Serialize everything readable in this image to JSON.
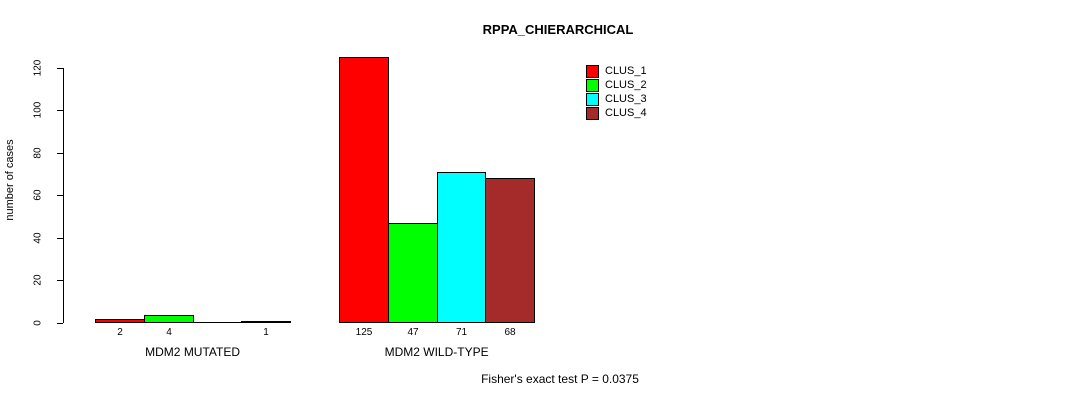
{
  "chart_data": {
    "type": "bar",
    "title": "RPPA_CHIERARCHICAL",
    "ylabel": "number of cases",
    "xlabel": "",
    "ylim": [
      0,
      125
    ],
    "yticks": [
      0,
      20,
      40,
      60,
      80,
      100,
      120
    ],
    "grid": false,
    "legend_position": "top-right-inside",
    "categories": [
      "MDM2 MUTATED",
      "MDM2 WILD-TYPE"
    ],
    "series": [
      {
        "name": "CLUS_1",
        "color": "#ff0000",
        "values": [
          2,
          125
        ]
      },
      {
        "name": "CLUS_2",
        "color": "#00ff00",
        "values": [
          4,
          47
        ]
      },
      {
        "name": "CLUS_3",
        "color": "#00ffff",
        "values": [
          0,
          71
        ]
      },
      {
        "name": "CLUS_4",
        "color": "#a52a2a",
        "values": [
          1,
          68
        ]
      }
    ],
    "bar_value_labels_visible": [
      "2",
      "4",
      "1",
      "125",
      "47",
      "71",
      "68"
    ],
    "annotation": "Fisher's exact test P = 0.0375",
    "colors": {
      "axis": "#000000",
      "text": "#000000",
      "background": "#ffffff"
    }
  }
}
